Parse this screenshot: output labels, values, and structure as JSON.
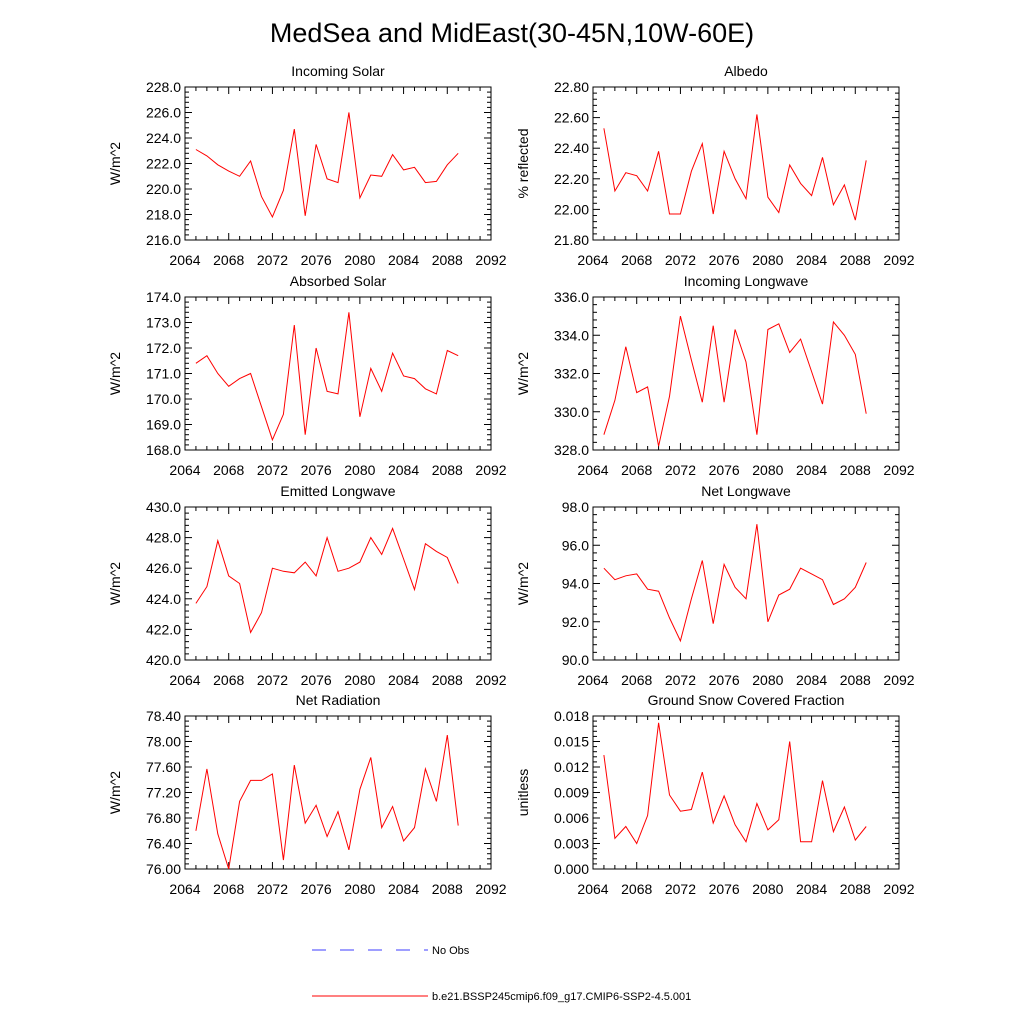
{
  "figure": {
    "title": "MedSea and MidEast(30-45N,10W-60E)"
  },
  "legend": {
    "entries": [
      {
        "label": "No Obs",
        "color": "#3d3dff",
        "dash": "dashed"
      },
      {
        "label": "b.e21.BSSP245cmip6.f09_g17.CMIP6-SSP2-4.5.001",
        "color": "#ff0000",
        "dash": "solid"
      }
    ]
  },
  "chart_data": [
    {
      "type": "line",
      "title": "Incoming Solar",
      "xlabel": "",
      "ylabel": "W/m^2",
      "xlim": [
        2064,
        2092
      ],
      "ylim": [
        216,
        228
      ],
      "xticks": [
        "2064",
        "2068",
        "2072",
        "2076",
        "2080",
        "2084",
        "2088",
        "2092"
      ],
      "yticks": [
        "216.0",
        "218.0",
        "220.0",
        "222.0",
        "224.0",
        "226.0",
        "228.0"
      ],
      "x": [
        2065,
        2066,
        2067,
        2068,
        2069,
        2070,
        2071,
        2072,
        2073,
        2074,
        2075,
        2076,
        2077,
        2078,
        2079,
        2080,
        2081,
        2082,
        2083,
        2084,
        2085,
        2086,
        2087,
        2088,
        2089
      ],
      "series": [
        {
          "color": "#ff0000",
          "values": [
            223.1,
            222.6,
            221.9,
            221.4,
            221.0,
            222.2,
            219.4,
            217.8,
            219.9,
            224.7,
            217.9,
            223.5,
            220.8,
            220.5,
            226.0,
            219.3,
            221.1,
            221.0,
            222.7,
            221.5,
            221.7,
            220.5,
            220.6,
            221.9,
            222.8
          ]
        }
      ]
    },
    {
      "type": "line",
      "title": "Albedo",
      "xlabel": "",
      "ylabel": "% reflected",
      "xlim": [
        2064,
        2092
      ],
      "ylim": [
        21.8,
        22.8
      ],
      "xticks": [
        "2064",
        "2068",
        "2072",
        "2076",
        "2080",
        "2084",
        "2088",
        "2092"
      ],
      "yticks": [
        "21.80",
        "22.00",
        "22.20",
        "22.40",
        "22.60",
        "22.80"
      ],
      "x": [
        2065,
        2066,
        2067,
        2068,
        2069,
        2070,
        2071,
        2072,
        2073,
        2074,
        2075,
        2076,
        2077,
        2078,
        2079,
        2080,
        2081,
        2082,
        2083,
        2084,
        2085,
        2086,
        2087,
        2088,
        2089
      ],
      "series": [
        {
          "color": "#ff0000",
          "values": [
            22.53,
            22.12,
            22.24,
            22.22,
            22.12,
            22.38,
            21.97,
            21.97,
            22.25,
            22.43,
            21.97,
            22.38,
            22.2,
            22.07,
            22.62,
            22.08,
            21.98,
            22.29,
            22.17,
            22.09,
            22.34,
            22.03,
            22.16,
            21.93,
            22.32
          ]
        }
      ]
    },
    {
      "type": "line",
      "title": "Absorbed Solar",
      "xlabel": "",
      "ylabel": "W/m^2",
      "xlim": [
        2064,
        2092
      ],
      "ylim": [
        168,
        174
      ],
      "xticks": [
        "2064",
        "2068",
        "2072",
        "2076",
        "2080",
        "2084",
        "2088",
        "2092"
      ],
      "yticks": [
        "168.0",
        "169.0",
        "170.0",
        "171.0",
        "172.0",
        "173.0",
        "174.0"
      ],
      "x": [
        2065,
        2066,
        2067,
        2068,
        2069,
        2070,
        2071,
        2072,
        2073,
        2074,
        2075,
        2076,
        2077,
        2078,
        2079,
        2080,
        2081,
        2082,
        2083,
        2084,
        2085,
        2086,
        2087,
        2088,
        2089
      ],
      "series": [
        {
          "color": "#ff0000",
          "values": [
            171.4,
            171.7,
            171.0,
            170.5,
            170.8,
            171.0,
            169.7,
            168.4,
            169.4,
            172.9,
            168.6,
            172.0,
            170.3,
            170.2,
            173.4,
            169.3,
            171.2,
            170.3,
            171.8,
            170.9,
            170.8,
            170.4,
            170.2,
            171.9,
            171.7
          ]
        }
      ]
    },
    {
      "type": "line",
      "title": "Incoming Longwave",
      "xlabel": "",
      "ylabel": "W/m^2",
      "xlim": [
        2064,
        2092
      ],
      "ylim": [
        328,
        336
      ],
      "xticks": [
        "2064",
        "2068",
        "2072",
        "2076",
        "2080",
        "2084",
        "2088",
        "2092"
      ],
      "yticks": [
        "328.0",
        "330.0",
        "332.0",
        "334.0",
        "336.0"
      ],
      "x": [
        2065,
        2066,
        2067,
        2068,
        2069,
        2070,
        2071,
        2072,
        2073,
        2074,
        2075,
        2076,
        2077,
        2078,
        2079,
        2080,
        2081,
        2082,
        2083,
        2084,
        2085,
        2086,
        2087,
        2088,
        2089
      ],
      "series": [
        {
          "color": "#ff0000",
          "values": [
            328.8,
            330.6,
            333.4,
            331.0,
            331.3,
            328.2,
            330.8,
            335.0,
            332.7,
            330.5,
            334.5,
            330.5,
            334.3,
            332.6,
            328.8,
            334.3,
            334.6,
            333.1,
            333.8,
            332.1,
            330.4,
            334.7,
            334.0,
            333.0,
            329.9
          ]
        }
      ]
    },
    {
      "type": "line",
      "title": "Emitted Longwave",
      "xlabel": "",
      "ylabel": "W/m^2",
      "xlim": [
        2064,
        2092
      ],
      "ylim": [
        420,
        430
      ],
      "xticks": [
        "2064",
        "2068",
        "2072",
        "2076",
        "2080",
        "2084",
        "2088",
        "2092"
      ],
      "yticks": [
        "420.0",
        "422.0",
        "424.0",
        "426.0",
        "428.0",
        "430.0"
      ],
      "x": [
        2065,
        2066,
        2067,
        2068,
        2069,
        2070,
        2071,
        2072,
        2073,
        2074,
        2075,
        2076,
        2077,
        2078,
        2079,
        2080,
        2081,
        2082,
        2083,
        2084,
        2085,
        2086,
        2087,
        2088,
        2089
      ],
      "series": [
        {
          "color": "#ff0000",
          "values": [
            423.7,
            424.8,
            427.8,
            425.5,
            425.0,
            421.8,
            423.1,
            426.0,
            425.8,
            425.7,
            426.4,
            425.5,
            428.0,
            425.8,
            426.0,
            426.4,
            428.0,
            426.9,
            428.6,
            426.6,
            424.6,
            427.6,
            427.1,
            426.7,
            425.0
          ]
        }
      ]
    },
    {
      "type": "line",
      "title": "Net Longwave",
      "xlabel": "",
      "ylabel": "W/m^2",
      "xlim": [
        2064,
        2092
      ],
      "ylim": [
        90,
        98
      ],
      "xticks": [
        "2064",
        "2068",
        "2072",
        "2076",
        "2080",
        "2084",
        "2088",
        "2092"
      ],
      "yticks": [
        "90.0",
        "92.0",
        "94.0",
        "96.0",
        "98.0"
      ],
      "x": [
        2065,
        2066,
        2067,
        2068,
        2069,
        2070,
        2071,
        2072,
        2073,
        2074,
        2075,
        2076,
        2077,
        2078,
        2079,
        2080,
        2081,
        2082,
        2083,
        2084,
        2085,
        2086,
        2087,
        2088,
        2089
      ],
      "series": [
        {
          "color": "#ff0000",
          "values": [
            94.8,
            94.2,
            94.4,
            94.5,
            93.7,
            93.6,
            92.2,
            91.0,
            93.2,
            95.2,
            91.9,
            95.0,
            93.8,
            93.2,
            97.1,
            92.0,
            93.4,
            93.7,
            94.8,
            94.5,
            94.2,
            92.9,
            93.2,
            93.8,
            95.1
          ]
        }
      ]
    },
    {
      "type": "line",
      "title": "Net Radiation",
      "xlabel": "",
      "ylabel": "W/m^2",
      "xlim": [
        2064,
        2092
      ],
      "ylim": [
        76.0,
        78.4
      ],
      "xticks": [
        "2064",
        "2068",
        "2072",
        "2076",
        "2080",
        "2084",
        "2088",
        "2092"
      ],
      "yticks": [
        "76.00",
        "76.40",
        "76.80",
        "77.20",
        "77.60",
        "78.00",
        "78.40"
      ],
      "x": [
        2065,
        2066,
        2067,
        2068,
        2069,
        2070,
        2071,
        2072,
        2073,
        2074,
        2075,
        2076,
        2077,
        2078,
        2079,
        2080,
        2081,
        2082,
        2083,
        2084,
        2085,
        2086,
        2087,
        2088,
        2089
      ],
      "series": [
        {
          "color": "#ff0000",
          "values": [
            76.6,
            77.57,
            76.55,
            76.0,
            77.06,
            77.39,
            77.39,
            77.49,
            76.14,
            77.63,
            76.72,
            77.0,
            76.51,
            76.9,
            76.3,
            77.25,
            77.75,
            76.65,
            76.98,
            76.44,
            76.65,
            77.57,
            77.06,
            78.1,
            76.68
          ]
        }
      ]
    },
    {
      "type": "line",
      "title": "Ground Snow Covered Fraction",
      "xlabel": "",
      "ylabel": "unitless",
      "xlim": [
        2064,
        2092
      ],
      "ylim": [
        0.0,
        0.018
      ],
      "xticks": [
        "2064",
        "2068",
        "2072",
        "2076",
        "2080",
        "2084",
        "2088",
        "2092"
      ],
      "yticks": [
        "0.000",
        "0.003",
        "0.006",
        "0.009",
        "0.012",
        "0.015",
        "0.018"
      ],
      "x": [
        2065,
        2066,
        2067,
        2068,
        2069,
        2070,
        2071,
        2072,
        2073,
        2074,
        2075,
        2076,
        2077,
        2078,
        2079,
        2080,
        2081,
        2082,
        2083,
        2084,
        2085,
        2086,
        2087,
        2088,
        2089
      ],
      "series": [
        {
          "color": "#ff0000",
          "values": [
            0.0134,
            0.0036,
            0.005,
            0.003,
            0.0063,
            0.0172,
            0.0087,
            0.0068,
            0.007,
            0.0114,
            0.0054,
            0.0086,
            0.0052,
            0.0032,
            0.0077,
            0.0046,
            0.0058,
            0.015,
            0.0032,
            0.0032,
            0.0104,
            0.0044,
            0.0073,
            0.0034,
            0.005
          ]
        }
      ]
    }
  ]
}
